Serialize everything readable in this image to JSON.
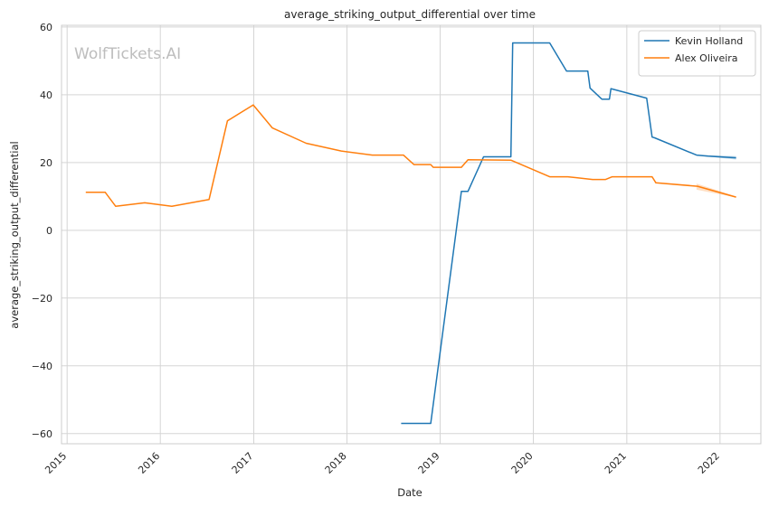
{
  "chart_data": {
    "type": "line",
    "title": "average_striking_output_differential over time",
    "xlabel": "Date",
    "ylabel": "average_striking_output_differential",
    "watermark": "WolfTickets.AI",
    "x_axis": "date",
    "xlim": [
      "2014-12-10",
      "2022-06-10"
    ],
    "ylim": [
      -63,
      60.5
    ],
    "xticks": [
      {
        "date": "2015-01-01",
        "label": "2015"
      },
      {
        "date": "2016-01-01",
        "label": "2016"
      },
      {
        "date": "2017-01-01",
        "label": "2017"
      },
      {
        "date": "2018-01-01",
        "label": "2018"
      },
      {
        "date": "2019-01-01",
        "label": "2019"
      },
      {
        "date": "2020-01-01",
        "label": "2020"
      },
      {
        "date": "2021-01-01",
        "label": "2021"
      },
      {
        "date": "2022-01-01",
        "label": "2022"
      }
    ],
    "yticks": [
      60,
      40,
      20,
      0,
      -20,
      -40,
      -60
    ],
    "ytick_labels": [
      "60",
      "40",
      "20",
      "0",
      "−20",
      "−40",
      "−60"
    ],
    "grid": true,
    "legend_position": "top-right",
    "series": [
      {
        "name": "Kevin Holland",
        "color": "#1f77b4",
        "points": [
          [
            "2018-08-01",
            -57
          ],
          [
            "2018-11-25",
            -57
          ],
          [
            "2019-03-25",
            11.5
          ],
          [
            "2019-04-20",
            11.5
          ],
          [
            "2019-06-20",
            21.7
          ],
          [
            "2019-10-05",
            21.7
          ],
          [
            "2019-10-12",
            55.3
          ],
          [
            "2020-03-05",
            55.3
          ],
          [
            "2020-05-10",
            47
          ],
          [
            "2020-08-01",
            47
          ],
          [
            "2020-08-10",
            42
          ],
          [
            "2020-09-25",
            38.7
          ],
          [
            "2020-10-25",
            38.7
          ],
          [
            "2020-10-31",
            41.8
          ],
          [
            "2021-03-20",
            39
          ],
          [
            "2021-04-10",
            27.5
          ],
          [
            "2021-04-20",
            27.3
          ],
          [
            "2021-10-01",
            22.2
          ],
          [
            "2021-11-15",
            21.9
          ],
          [
            "2022-03-05",
            21.4
          ]
        ],
        "band": {
          "from": "2021-10-01",
          "to": "2022-03-05",
          "lower": [
            22.1,
            20.9
          ],
          "upper": [
            22.3,
            21.9
          ]
        }
      },
      {
        "name": "Alex Oliveira",
        "color": "#ff7f0e",
        "points": [
          [
            "2015-03-15",
            11.2
          ],
          [
            "2015-05-30",
            11.2
          ],
          [
            "2015-07-10",
            7.1
          ],
          [
            "2015-11-01",
            8.1
          ],
          [
            "2016-02-15",
            7.1
          ],
          [
            "2016-07-10",
            9.1
          ],
          [
            "2016-09-20",
            32.3
          ],
          [
            "2016-12-30",
            37
          ],
          [
            "2017-03-15",
            30.2
          ],
          [
            "2017-07-25",
            25.7
          ],
          [
            "2017-12-10",
            23.4
          ],
          [
            "2018-04-10",
            22.2
          ],
          [
            "2018-08-10",
            22.2
          ],
          [
            "2018-09-20",
            19.4
          ],
          [
            "2018-11-25",
            19.4
          ],
          [
            "2018-12-05",
            18.6
          ],
          [
            "2019-03-25",
            18.6
          ],
          [
            "2019-04-20",
            20.8
          ],
          [
            "2019-10-05",
            20.7
          ],
          [
            "2020-03-05",
            15.8
          ],
          [
            "2020-05-15",
            15.8
          ],
          [
            "2020-08-20",
            15
          ],
          [
            "2020-10-10",
            15
          ],
          [
            "2020-11-05",
            15.8
          ],
          [
            "2021-04-10",
            15.8
          ],
          [
            "2021-04-25",
            14
          ],
          [
            "2021-10-05",
            13
          ],
          [
            "2022-03-05",
            9.8
          ]
        ],
        "band": {
          "from": "2021-10-01",
          "to": "2022-03-05",
          "lower": [
            12,
            9.7
          ],
          "upper": [
            13.8,
            10
          ]
        }
      }
    ]
  }
}
